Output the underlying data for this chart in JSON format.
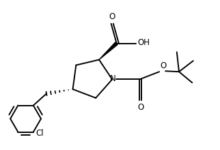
{
  "bg_color": "#ffffff",
  "line_color": "#000000",
  "lw": 1.4,
  "fig_width": 3.22,
  "fig_height": 2.2,
  "dpi": 100,
  "xlim": [
    0,
    10
  ],
  "ylim": [
    0,
    6.8
  ]
}
